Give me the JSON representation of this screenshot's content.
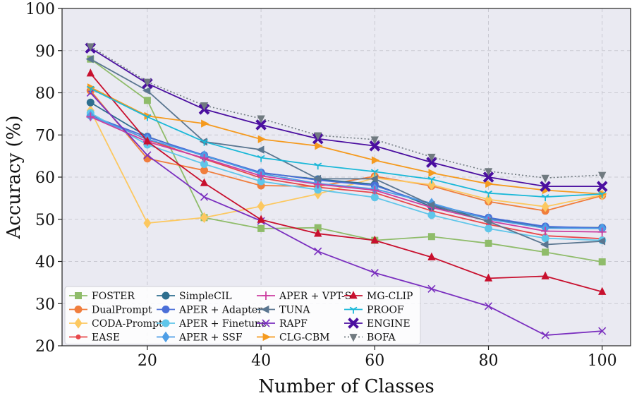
{
  "chart_data": {
    "type": "line",
    "xlabel": "Number of Classes",
    "ylabel": "Accuracy (%)",
    "xlim": [
      5,
      105
    ],
    "ylim": [
      20,
      100
    ],
    "xticks": [
      20,
      40,
      60,
      80,
      100
    ],
    "yticks": [
      20,
      30,
      40,
      50,
      60,
      70,
      80,
      90,
      100
    ],
    "grid": true,
    "legend_position": "bottom-left",
    "x": [
      10,
      20,
      30,
      40,
      50,
      60,
      70,
      80,
      90,
      100
    ],
    "series": [
      {
        "name": "FOSTER",
        "color": "#8fbc6a",
        "marker": "square",
        "dash": "solid",
        "values": [
          88.0,
          78.2,
          50.4,
          47.8,
          48.0,
          45.0,
          45.9,
          44.3,
          42.2,
          39.9
        ]
      },
      {
        "name": "DualPrompt",
        "color": "#f07d3c",
        "marker": "circle",
        "dash": "solid",
        "values": [
          80.5,
          64.4,
          61.6,
          58.0,
          57.8,
          60.2,
          57.9,
          54.2,
          52.0,
          55.6
        ]
      },
      {
        "name": "CODA-Prompt",
        "color": "#fcc860",
        "marker": "diamond",
        "dash": "solid",
        "values": [
          75.8,
          49.1,
          50.4,
          53.1,
          56.0,
          59.8,
          58.2,
          54.7,
          53.0,
          55.8
        ]
      },
      {
        "name": "EASE",
        "color": "#e8474b",
        "marker": "dot",
        "dash": "solid",
        "values": [
          74.8,
          68.9,
          64.3,
          59.8,
          57.6,
          56.3,
          52.0,
          48.8,
          46.1,
          45.4
        ]
      },
      {
        "name": "SimpleCIL",
        "color": "#2f6f8f",
        "marker": "circle",
        "dash": "solid",
        "values": [
          77.7,
          69.6,
          65.0,
          61.0,
          59.5,
          58.3,
          53.0,
          50.2,
          48.2,
          48.0
        ]
      },
      {
        "name": "APER + Adapter",
        "color": "#4b6fd8",
        "marker": "circle",
        "dash": "solid",
        "values": [
          74.6,
          69.5,
          65.2,
          61.1,
          59.3,
          58.0,
          53.5,
          50.4,
          48.3,
          47.9
        ]
      },
      {
        "name": "APER + Finetune",
        "color": "#5fc6ea",
        "marker": "circle",
        "dash": "solid",
        "values": [
          75.2,
          67.7,
          63.1,
          59.0,
          57.0,
          55.2,
          51.0,
          47.8,
          45.5,
          45.0
        ]
      },
      {
        "name": "APER + SSF",
        "color": "#4e9ee6",
        "marker": "diamond",
        "dash": "solid",
        "values": [
          74.5,
          69.0,
          65.1,
          60.8,
          58.5,
          57.2,
          53.8,
          50.0,
          47.9,
          47.8
        ]
      },
      {
        "name": "APER + VPT-S",
        "color": "#cc3fa0",
        "marker": "plus",
        "dash": "solid",
        "values": [
          74.3,
          68.4,
          64.5,
          60.3,
          58.3,
          56.9,
          52.8,
          49.6,
          47.2,
          47.0
        ]
      },
      {
        "name": "TUNA",
        "color": "#5a7690",
        "marker": "triangle-left",
        "dash": "solid",
        "values": [
          88.0,
          80.5,
          68.4,
          66.5,
          59.6,
          59.6,
          53.4,
          49.5,
          44.0,
          44.8
        ]
      },
      {
        "name": "RAPF",
        "color": "#7a2fbf",
        "marker": "x",
        "dash": "solid",
        "values": [
          80.0,
          65.2,
          55.3,
          49.6,
          42.4,
          37.3,
          33.5,
          29.4,
          22.5,
          23.5
        ]
      },
      {
        "name": "CLG-CBM",
        "color": "#f59a1e",
        "marker": "triangle-right",
        "dash": "solid",
        "values": [
          81.3,
          74.5,
          72.7,
          69.0,
          67.4,
          64.0,
          61.0,
          58.4,
          56.9,
          56.0
        ]
      },
      {
        "name": "MG-CLIP",
        "color": "#c8102e",
        "marker": "triangle-up",
        "dash": "solid",
        "values": [
          84.6,
          68.5,
          58.6,
          49.9,
          46.6,
          45.0,
          41.0,
          36.0,
          36.5,
          32.8
        ]
      },
      {
        "name": "PROOF",
        "color": "#1ab8d8",
        "marker": "tri-down",
        "dash": "solid",
        "values": [
          81.0,
          74.3,
          68.4,
          64.6,
          62.8,
          61.3,
          59.5,
          56.2,
          55.3,
          56.0
        ]
      },
      {
        "name": "ENGINE",
        "color": "#4b0fa0",
        "marker": "xfilled",
        "dash": "solid",
        "values": [
          90.6,
          82.2,
          76.1,
          72.4,
          69.1,
          67.4,
          63.5,
          60.0,
          57.8,
          57.8
        ]
      },
      {
        "name": "BOFA",
        "color": "#707a80",
        "marker": "triangle-down",
        "dash": "dotted",
        "values": [
          91.0,
          82.6,
          77.0,
          73.9,
          69.9,
          68.9,
          64.8,
          61.4,
          59.8,
          60.5
        ]
      }
    ]
  }
}
